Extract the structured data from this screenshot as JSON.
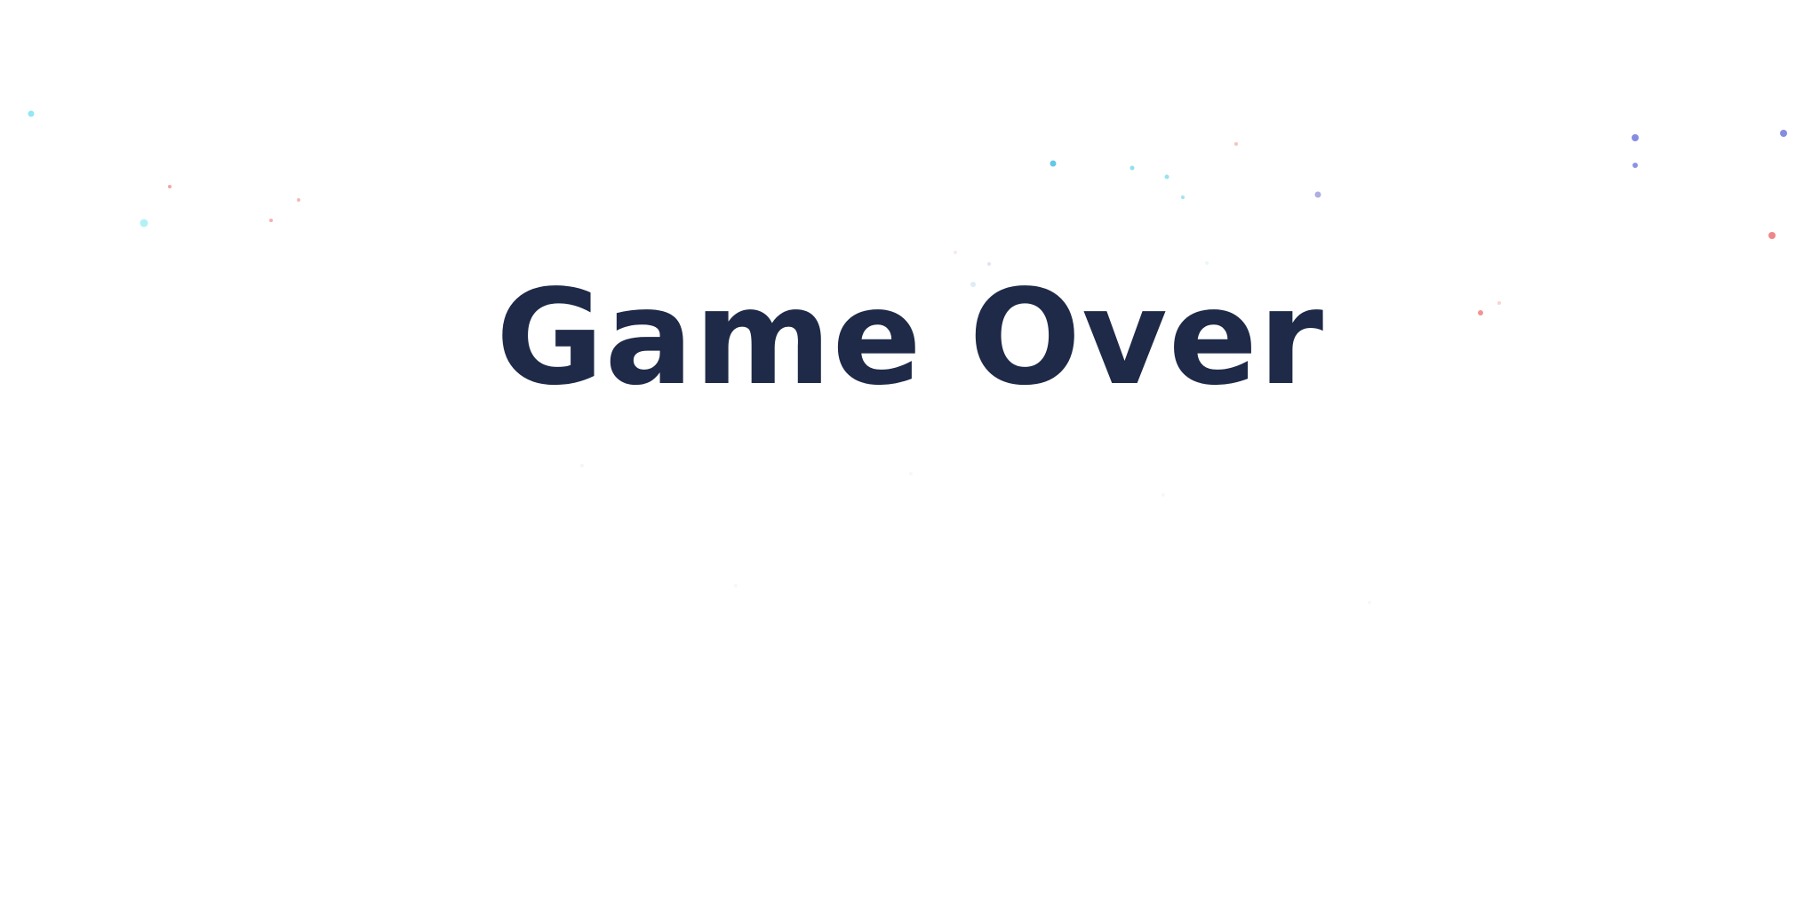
{
  "screen": {
    "title": "Game Over",
    "title_color": "#1e2a47",
    "background_color": "#ffffff"
  },
  "particles": [
    {
      "color": "#7fe3f0",
      "opacity": 0.85
    },
    {
      "color": "#f29a9a",
      "opacity": 0.9
    },
    {
      "color": "#a8f0f5",
      "opacity": 0.9
    },
    {
      "color": "#f29a9a",
      "opacity": 0.8
    },
    {
      "color": "#f29a9a",
      "opacity": 0.7
    },
    {
      "color": "#5bc4e6",
      "opacity": 0.95
    },
    {
      "color": "#7fdbe8",
      "opacity": 0.85
    },
    {
      "color": "#7fdbe8",
      "opacity": 0.8
    },
    {
      "color": "#7fdbe8",
      "opacity": 0.75
    },
    {
      "color": "#f4a6a6",
      "opacity": 0.7
    },
    {
      "color": "#9a9ad8",
      "opacity": 0.8
    },
    {
      "color": "#7f86e0",
      "opacity": 0.95
    },
    {
      "color": "#7f86e0",
      "opacity": 0.9
    },
    {
      "color": "#7f86e0",
      "opacity": 0.95
    },
    {
      "color": "#f08080",
      "opacity": 0.95
    },
    {
      "color": "#f08080",
      "opacity": 0.85
    },
    {
      "color": "#f4a6a6",
      "opacity": 0.5
    },
    {
      "color": "#c8e0f0",
      "opacity": 0.6
    },
    {
      "color": "#d8d8e8",
      "opacity": 0.7
    },
    {
      "color": "#f0d8d8",
      "opacity": 0.5
    },
    {
      "color": "#d0e8f0",
      "opacity": 0.4
    },
    {
      "color": "#e8e8e8",
      "opacity": 0.4
    },
    {
      "color": "#e8e8e8",
      "opacity": 0.35
    },
    {
      "color": "#e8e8e8",
      "opacity": 0.35
    },
    {
      "color": "#e8e8e8",
      "opacity": 0.35
    },
    {
      "color": "#e8e8e8",
      "opacity": 0.35
    }
  ]
}
